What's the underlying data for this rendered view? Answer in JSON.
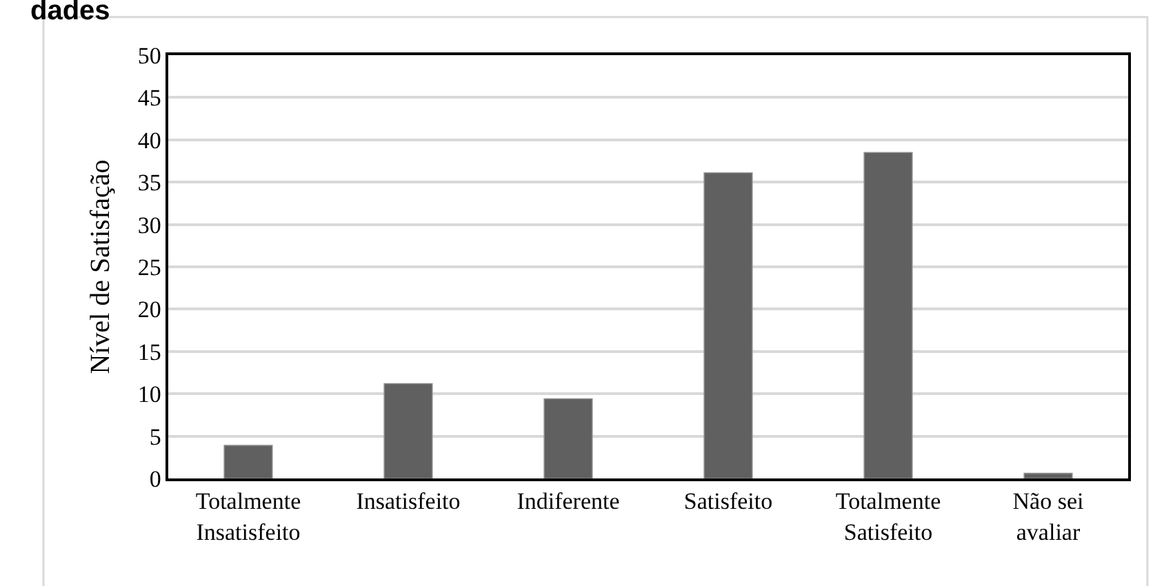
{
  "chart_data": {
    "type": "bar",
    "title": "dades",
    "ylabel": "Nível de Satisfação",
    "categories": [
      "Totalmente\nInsatisfeito",
      "Insatisfeito",
      "Indiferente",
      "Satisfeito",
      "Totalmente\nSatisfeito",
      "Não sei\navaliar"
    ],
    "values": [
      3.9,
      11.2,
      9.4,
      36.1,
      38.5,
      0.6
    ],
    "color": "#606060",
    "ylim": [
      0,
      50
    ],
    "yticks": [
      0,
      5,
      10,
      15,
      20,
      25,
      30,
      35,
      40,
      45,
      50
    ],
    "grid": "y"
  }
}
